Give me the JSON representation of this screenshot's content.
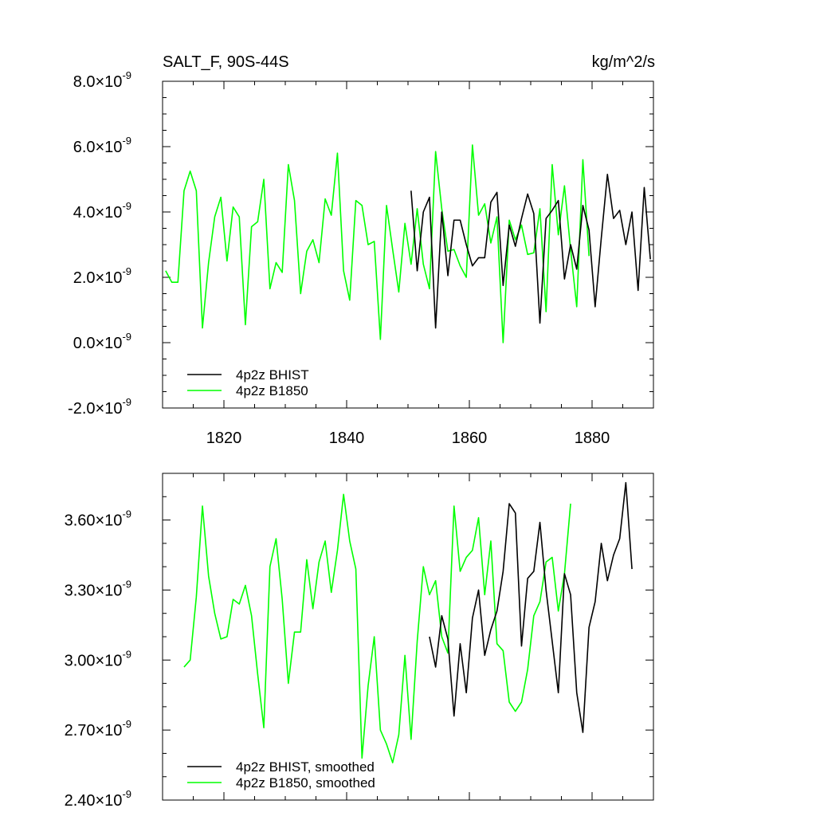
{
  "chart_data": [
    {
      "type": "line",
      "title_left": "SALT_F, 90S-44S",
      "title_right": "kg/m^2/s",
      "xlabel": "",
      "ylabel": "",
      "xlim": [
        1810,
        1890
      ],
      "ylim": [
        -2e-09,
        8e-09
      ],
      "x_ticks": [
        1820,
        1840,
        1860,
        1880
      ],
      "x_tick_labels": [
        "1820",
        "1840",
        "1860",
        "1880"
      ],
      "y_ticks": [
        -2e-09,
        0.0,
        2e-09,
        4e-09,
        6e-09,
        8e-09
      ],
      "y_tick_labels": [
        {
          "mant": "-2.0",
          "exp": "-9"
        },
        {
          "mant": "0.0",
          "exp": "-9"
        },
        {
          "mant": "2.0",
          "exp": "-9"
        },
        {
          "mant": "4.0",
          "exp": "-9"
        },
        {
          "mant": "6.0",
          "exp": "-9"
        },
        {
          "mant": "8.0",
          "exp": "-9"
        }
      ],
      "legend_position": "bottom-left",
      "grid": false,
      "series": [
        {
          "name": "4p2z BHIST",
          "color": "#000000",
          "x_start": 1850.5,
          "values": [
            4.65e-09,
            2.2e-09,
            4e-09,
            4.45e-09,
            4.5e-10,
            4e-09,
            2.05e-09,
            3.75e-09,
            3.75e-09,
            3e-09,
            2.35e-09,
            2.6e-09,
            2.6e-09,
            4.3e-09,
            4.6e-09,
            1.75e-09,
            3.6e-09,
            2.95e-09,
            3.8e-09,
            4.55e-09,
            3.95e-09,
            6e-10,
            3.8e-09,
            4.05e-09,
            4.35e-09,
            1.95e-09,
            3e-09,
            2.25e-09,
            4.2e-09,
            3.45e-09,
            1.1e-09,
            3.2e-09,
            5.15e-09,
            3.8e-09,
            4.05e-09,
            3e-09,
            4e-09,
            1.6e-09,
            4.75e-09,
            2.55e-09
          ]
        },
        {
          "name": "4p2z B1850",
          "color": "#00ff00",
          "x_start": 1810.5,
          "values": [
            2.2e-09,
            1.85e-09,
            1.85e-09,
            4.65e-09,
            5.25e-09,
            4.65e-09,
            4.5e-10,
            2.45e-09,
            3.85e-09,
            4.45e-09,
            2.5e-09,
            4.15e-09,
            3.85e-09,
            5.5e-10,
            3.55e-09,
            3.7e-09,
            5e-09,
            1.65e-09,
            2.45e-09,
            2.15e-09,
            5.45e-09,
            4.35e-09,
            1.5e-09,
            2.8e-09,
            3.15e-09,
            2.45e-09,
            4.4e-09,
            3.9e-09,
            5.8e-09,
            2.2e-09,
            1.3e-09,
            4.35e-09,
            4.2e-09,
            3e-09,
            3.1e-09,
            1e-10,
            4.2e-09,
            2.85e-09,
            1.55e-09,
            3.65e-09,
            2.4e-09,
            4.1e-09,
            2.4e-09,
            1.65e-09,
            5.85e-09,
            4.1e-09,
            2.8e-09,
            2.85e-09,
            2.35e-09,
            2e-09,
            6.05e-09,
            3.9e-09,
            4.25e-09,
            3.05e-09,
            3.85e-09,
            0.0,
            3.75e-09,
            3.15e-09,
            3.6e-09,
            2.7e-09,
            2.75e-09,
            4.1e-09,
            9.5e-10,
            5.45e-09,
            3.3e-09,
            4.8e-09,
            2.85e-09,
            1.1e-09,
            5.6e-09,
            2.65e-09
          ]
        }
      ]
    },
    {
      "type": "line",
      "xlabel": "",
      "ylabel": "",
      "xlim": [
        1810,
        1890
      ],
      "ylim": [
        2.4e-09,
        3.8e-09
      ],
      "x_ticks": [
        1820,
        1840,
        1860,
        1880
      ],
      "y_ticks": [
        2.4e-09,
        2.7e-09,
        3e-09,
        3.3e-09,
        3.6e-09
      ],
      "y_tick_labels": [
        {
          "mant": "2.40",
          "exp": "-9"
        },
        {
          "mant": "2.70",
          "exp": "-9"
        },
        {
          "mant": "3.00",
          "exp": "-9"
        },
        {
          "mant": "3.30",
          "exp": "-9"
        },
        {
          "mant": "3.60",
          "exp": "-9"
        }
      ],
      "legend_position": "bottom-left",
      "grid": false,
      "series": [
        {
          "name": "4p2z BHIST, smoothed",
          "color": "#000000",
          "x_start": 1853.5,
          "values": [
            3.1e-09,
            2.97e-09,
            3.19e-09,
            3.09e-09,
            2.76e-09,
            3.07e-09,
            2.86e-09,
            3.18e-09,
            3.3e-09,
            3.02e-09,
            3.13e-09,
            3.21e-09,
            3.38e-09,
            3.67e-09,
            3.63e-09,
            3.06e-09,
            3.35e-09,
            3.38e-09,
            3.59e-09,
            3.3e-09,
            3.08e-09,
            2.86e-09,
            3.37e-09,
            3.28e-09,
            2.86e-09,
            2.69e-09,
            3.14e-09,
            3.25e-09,
            3.5e-09,
            3.34e-09,
            3.45e-09,
            3.52e-09,
            3.76e-09,
            3.39e-09
          ]
        },
        {
          "name": "4p2z B1850, smoothed",
          "color": "#00ff00",
          "x_start": 1813.5,
          "values": [
            2.97e-09,
            3e-09,
            3.27e-09,
            3.66e-09,
            3.36e-09,
            3.2e-09,
            3.09e-09,
            3.1e-09,
            3.26e-09,
            3.24e-09,
            3.32e-09,
            3.19e-09,
            2.94e-09,
            2.71e-09,
            3.4e-09,
            3.52e-09,
            3.26e-09,
            2.9e-09,
            3.12e-09,
            3.12e-09,
            3.43e-09,
            3.22e-09,
            3.42e-09,
            3.51e-09,
            3.29e-09,
            3.47e-09,
            3.71e-09,
            3.51e-09,
            3.39e-09,
            2.58e-09,
            2.89e-09,
            3.1e-09,
            2.7e-09,
            2.64e-09,
            2.56e-09,
            2.68e-09,
            3.02e-09,
            2.66e-09,
            3.08e-09,
            3.4e-09,
            3.28e-09,
            3.34e-09,
            3.1e-09,
            3.03e-09,
            3.66e-09,
            3.38e-09,
            3.44e-09,
            3.47e-09,
            3.61e-09,
            3.28e-09,
            3.51e-09,
            3.07e-09,
            3.04e-09,
            2.82e-09,
            2.78e-09,
            2.82e-09,
            2.96e-09,
            3.19e-09,
            3.25e-09,
            3.42e-09,
            3.44e-09,
            3.21e-09,
            3.37e-09,
            3.67e-09
          ]
        }
      ]
    }
  ]
}
